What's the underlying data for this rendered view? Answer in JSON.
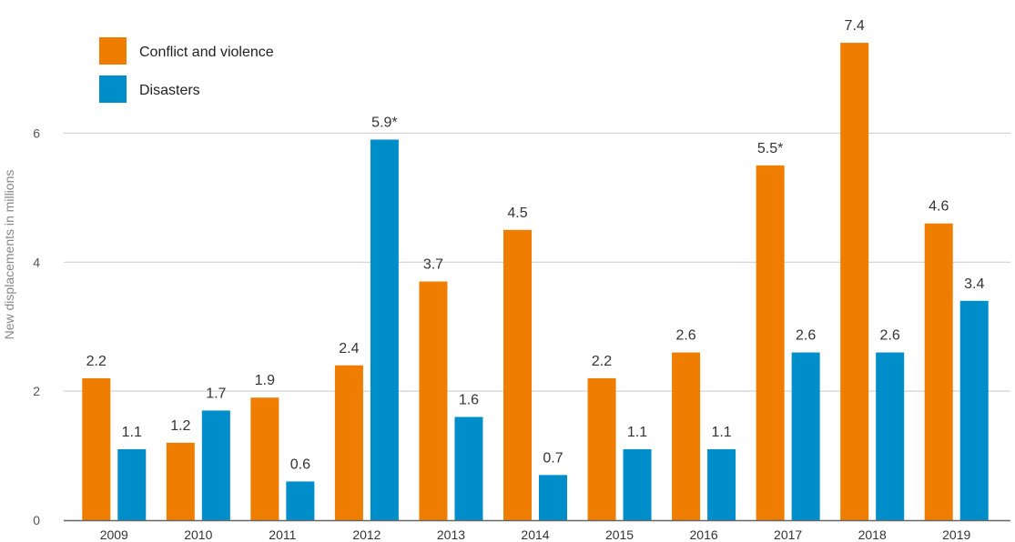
{
  "chart_data": {
    "type": "bar",
    "ylabel": "New displacements in millions",
    "xlabel": "",
    "ylim": [
      0,
      7.5
    ],
    "yticks": [
      0,
      2,
      4,
      6
    ],
    "grid": true,
    "legend_position": "top-left",
    "categories": [
      "2009",
      "2010",
      "2011",
      "2012",
      "2013",
      "2014",
      "2015",
      "2016",
      "2017",
      "2018",
      "2019"
    ],
    "series": [
      {
        "name": "Conflict and violence",
        "color": "#ef7d00",
        "values": [
          2.2,
          1.2,
          1.9,
          2.4,
          3.7,
          4.5,
          2.2,
          2.6,
          5.5,
          7.4,
          4.6
        ],
        "labels": [
          "2.2",
          "1.2",
          "1.9",
          "2.4",
          "3.7",
          "4.5",
          "2.2",
          "2.6",
          "5.5*",
          "7.4",
          "4.6"
        ]
      },
      {
        "name": "Disasters",
        "color": "#008ecb",
        "values": [
          1.1,
          1.7,
          0.6,
          5.9,
          1.6,
          0.7,
          1.1,
          1.1,
          2.6,
          2.6,
          3.4
        ],
        "labels": [
          "1.1",
          "1.7",
          "0.6",
          "5.9*",
          "1.6",
          "0.7",
          "1.1",
          "1.1",
          "2.6",
          "2.6",
          "3.4"
        ]
      }
    ]
  }
}
